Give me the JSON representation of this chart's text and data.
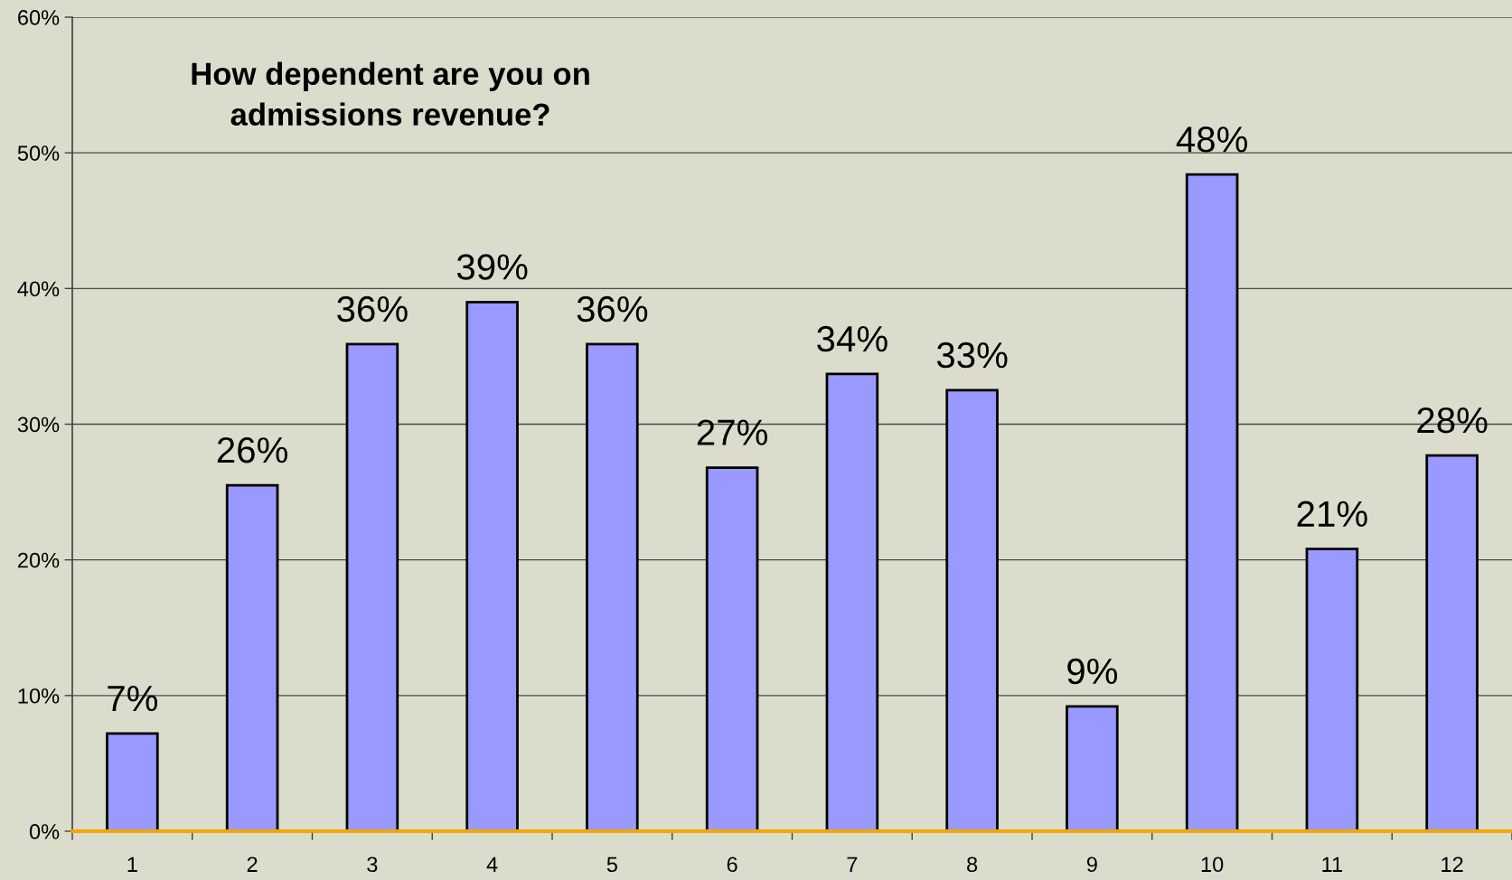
{
  "chart_data": {
    "type": "bar",
    "title": "How dependent are you on\nadmissions revenue?",
    "categories": [
      "1",
      "2",
      "3",
      "4",
      "5",
      "6",
      "7",
      "8",
      "9",
      "10",
      "11",
      "12"
    ],
    "values": [
      7.2,
      25.5,
      35.9,
      39.0,
      35.9,
      26.8,
      33.7,
      32.5,
      9.2,
      48.4,
      20.8,
      27.7
    ],
    "value_labels": [
      "7%",
      "26%",
      "36%",
      "39%",
      "36%",
      "27%",
      "34%",
      "33%",
      "9%",
      "48%",
      "21%",
      "28%"
    ],
    "color": "#9999ff",
    "ylim": [
      0,
      60
    ],
    "yticks": [
      {
        "value": 0,
        "label": "0%"
      },
      {
        "value": 10,
        "label": "10%"
      },
      {
        "value": 20,
        "label": "20%"
      },
      {
        "value": 30,
        "label": "30%"
      },
      {
        "value": 40,
        "label": "40%"
      },
      {
        "value": 50,
        "label": "50%"
      },
      {
        "value": 60,
        "label": "60%"
      }
    ],
    "grid": "y"
  }
}
